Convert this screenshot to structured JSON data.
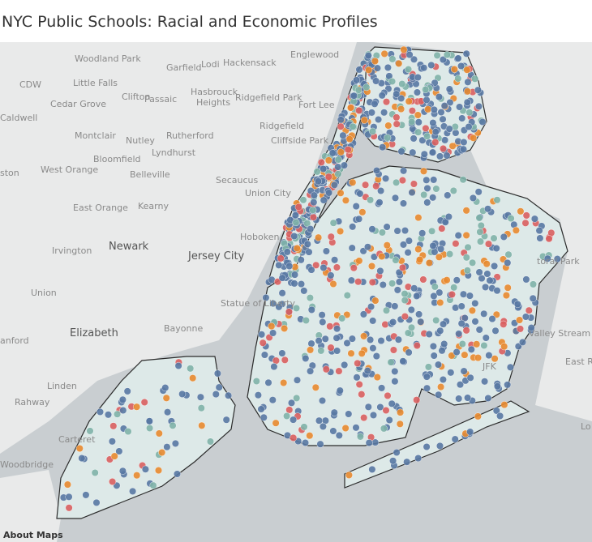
{
  "header": {
    "title": "NYC Public Schools: Racial and Economic Profiles"
  },
  "map": {
    "labels": [
      "Woodland Park",
      "Garfield",
      "Lodi",
      "Hackensack",
      "Englewood",
      "CDW",
      "Little Falls",
      "Clifton",
      "Passaic",
      "Hasbrouck",
      "Heights",
      "Ridgefield Park",
      "Fort Lee",
      "Caldwell",
      "Cedar Grove",
      "Montclair",
      "Nutley",
      "Rutherford",
      "Ridgefield",
      "Cliffside Park",
      "Lyndhurst",
      "Bloomfield",
      "West Orange",
      "ston",
      "Belleville",
      "Secaucus",
      "Union City",
      "East Orange",
      "Kearny",
      "Hoboken",
      "Newark",
      "Irvington",
      "Jersey City",
      "Union",
      "Statue of Liberty",
      "Elizabeth",
      "Bayonne",
      "anford",
      "Linden",
      "Rahway",
      "Carteret",
      "Woodbridge",
      "toral Park",
      "Valley Stream",
      "East Ro",
      "JFK",
      "Lo"
    ]
  },
  "footer": {
    "attribution": "About Maps"
  }
}
